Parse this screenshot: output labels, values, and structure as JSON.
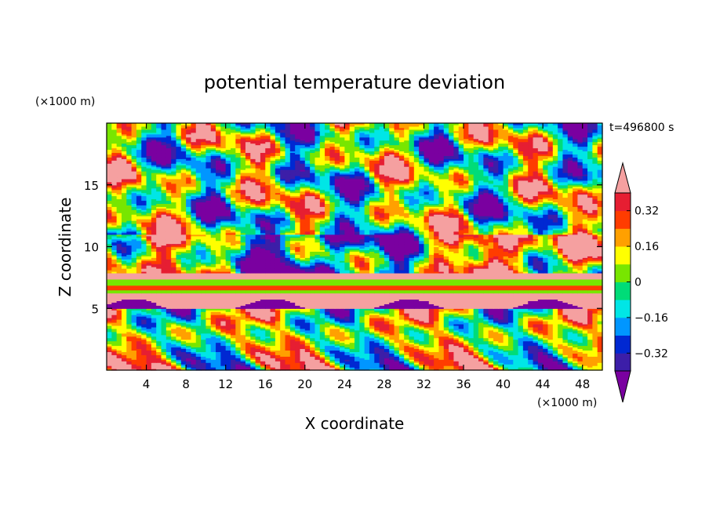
{
  "chart_data": {
    "type": "heatmap",
    "title": "potential temperature deviation",
    "time_label": "t=496800 s",
    "xlabel": "X coordinate",
    "ylabel": "Z coordinate",
    "x_unit": "(×1000 m)",
    "y_unit": "(×1000 m)",
    "xlim": [
      0,
      50
    ],
    "ylim": [
      0,
      20
    ],
    "x_ticks": [
      4,
      8,
      12,
      16,
      20,
      24,
      28,
      32,
      36,
      40,
      44,
      48
    ],
    "y_ticks": [
      5,
      10,
      15
    ],
    "colorbar": {
      "levels": [
        -0.4,
        -0.32,
        -0.24,
        -0.16,
        -0.08,
        0,
        0.08,
        0.16,
        0.24,
        0.32,
        0.4
      ],
      "tick_labels": [
        "0.32",
        "0.16",
        "0",
        "−0.16",
        "−0.32"
      ],
      "tick_values": [
        0.32,
        0.16,
        0,
        -0.16,
        -0.32
      ],
      "colors": [
        "#7a00a0",
        "#3c1ea8",
        "#0028d2",
        "#0096ff",
        "#00e6e6",
        "#00dc78",
        "#78e600",
        "#ffff00",
        "#ffa000",
        "#ff3c00",
        "#e61e32",
        "#f5a0a0"
      ],
      "extends": "both"
    },
    "grid": false,
    "legend_position": "right"
  }
}
